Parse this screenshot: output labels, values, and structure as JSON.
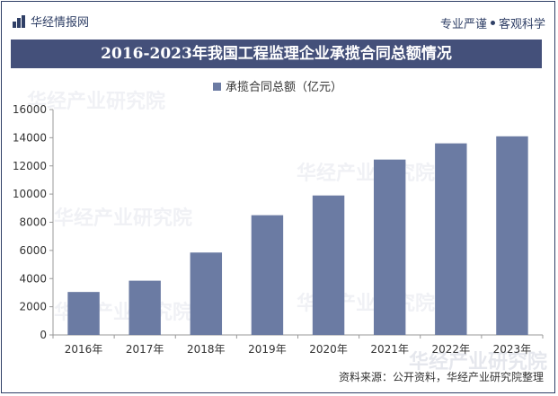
{
  "header": {
    "brand": "华经情报网",
    "slogan_left": "专业严谨",
    "slogan_right": "客观科学"
  },
  "chart_data": {
    "type": "bar",
    "title": "2016-2023年我国工程监理企业承揽合同总额情况",
    "categories": [
      "2016年",
      "2017年",
      "2018年",
      "2019年",
      "2020年",
      "2021年",
      "2022年",
      "2023年"
    ],
    "series": [
      {
        "name": "承揽合同总额（亿元）",
        "values": [
          3050,
          3850,
          5850,
          8500,
          9900,
          12450,
          13600,
          14100
        ]
      }
    ],
    "ylim": [
      0,
      16000
    ],
    "yticks": [
      0,
      2000,
      4000,
      6000,
      8000,
      10000,
      12000,
      14000,
      16000
    ],
    "grid": false,
    "legend_position": "top-center",
    "bar_color": "#6b7ba3"
  },
  "footer": {
    "source": "资料来源：公开资料，华经产业研究院整理"
  },
  "watermark": {
    "text": "华经产业研究院"
  }
}
